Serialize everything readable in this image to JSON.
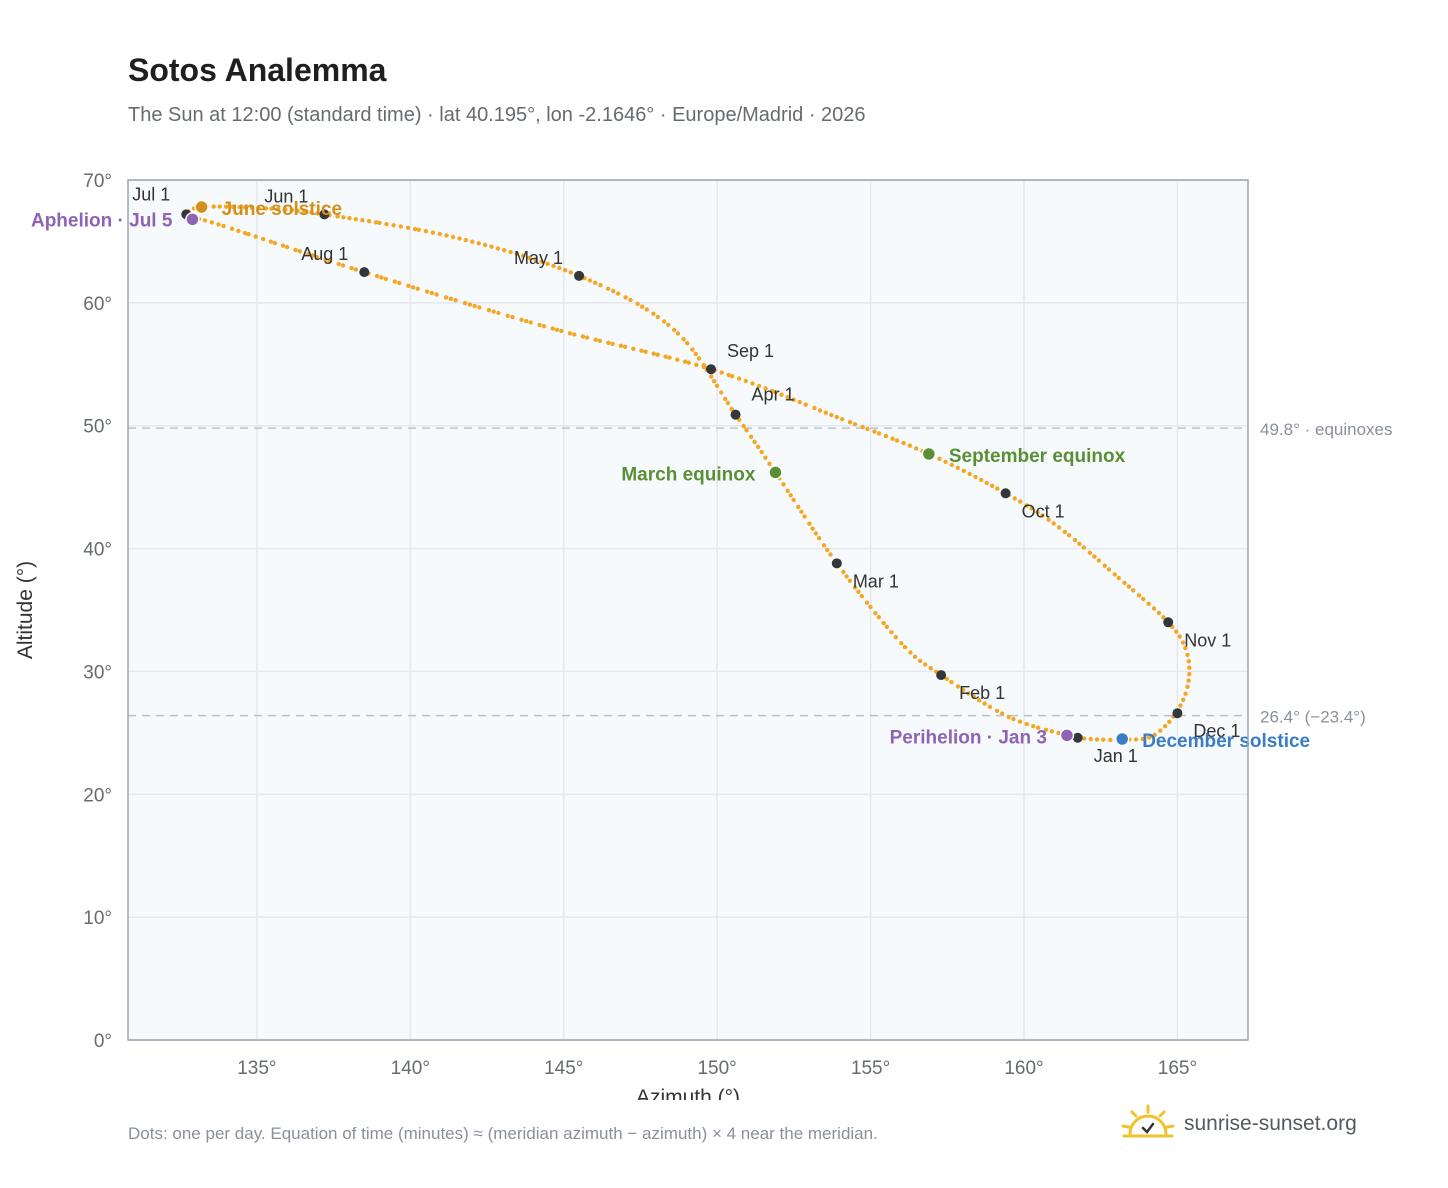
{
  "title": "Sotos Analemma",
  "subtitle": "The Sun at 12:00 (standard time) · lat 40.195°, lon -2.1646° · Europe/Madrid · 2026",
  "footnote": "Dots: one per day. Equation of time (minutes) ≈ (meridian azimuth − azimuth) × 4 near the meridian.",
  "brand": "sunrise-sunset.org",
  "colors": {
    "curve": "#f5a623",
    "month_dot": "#33363b",
    "june_solstice": "#d4901c",
    "december_solstice": "#3b7dc4",
    "equinox": "#5a8f35",
    "apsis": "#8e63b5",
    "grid": "#e4e8ee",
    "plot_bg": "#f7fafd",
    "frame": "#9aa3b2",
    "ref_line": "#b8c2cc",
    "logo": "#f2c12e"
  },
  "chart_data": {
    "type": "scatter",
    "xlabel": "Azimuth (°)",
    "ylabel": "Altitude (°)",
    "xlim": [
      130.8,
      167.3
    ],
    "ylim": [
      0,
      70
    ],
    "grid": true,
    "x_ticks": [
      {
        "value": 135,
        "label": "135°"
      },
      {
        "value": 140,
        "label": "140°"
      },
      {
        "value": 145,
        "label": "145°"
      },
      {
        "value": 150,
        "label": "150°"
      },
      {
        "value": 155,
        "label": "155°"
      },
      {
        "value": 160,
        "label": "160°"
      },
      {
        "value": 165,
        "label": "165°"
      }
    ],
    "y_ticks": [
      {
        "value": 0,
        "label": "0°"
      },
      {
        "value": 10,
        "label": "10°"
      },
      {
        "value": 20,
        "label": "20°"
      },
      {
        "value": 30,
        "label": "30°"
      },
      {
        "value": 40,
        "label": "40°"
      },
      {
        "value": 50,
        "label": "50°"
      },
      {
        "value": 60,
        "label": "60°"
      },
      {
        "value": 70,
        "label": "70°"
      }
    ],
    "reference_lines": [
      {
        "y": 49.8,
        "label": "49.8° · equinoxes"
      },
      {
        "y": 26.4,
        "label": "26.4° (−23.4°)"
      }
    ],
    "curve_points": [
      [
        161.75,
        24.6
      ],
      [
        162.5,
        24.45
      ],
      [
        163.35,
        24.45
      ],
      [
        164.2,
        24.75
      ],
      [
        164.95,
        26.6
      ],
      [
        165.35,
        29.0
      ],
      [
        165.3,
        31.6
      ],
      [
        164.7,
        34.0
      ],
      [
        163.0,
        37.8
      ],
      [
        161.1,
        41.8
      ],
      [
        159.4,
        44.5
      ],
      [
        156.9,
        47.7
      ],
      [
        153.9,
        50.7
      ],
      [
        149.8,
        54.6
      ],
      [
        144.5,
        58.0
      ],
      [
        138.5,
        62.5
      ],
      [
        133.6,
        66.5
      ],
      [
        132.9,
        66.8
      ],
      [
        132.7,
        67.2
      ],
      [
        133.2,
        67.8
      ],
      [
        135.2,
        67.7
      ],
      [
        137.2,
        67.2
      ],
      [
        141.5,
        65.3
      ],
      [
        145.5,
        62.2
      ],
      [
        148.6,
        57.8
      ],
      [
        150.6,
        50.9
      ],
      [
        151.9,
        46.2
      ],
      [
        153.9,
        38.8
      ],
      [
        156.0,
        32.3
      ],
      [
        157.3,
        29.7
      ],
      [
        159.5,
        26.3
      ],
      [
        161.4,
        24.8
      ],
      [
        161.75,
        24.6
      ]
    ],
    "month_markers": [
      {
        "label": "Jan 1",
        "az": 161.75,
        "alt": 24.6
      },
      {
        "label": "Feb 1",
        "az": 157.3,
        "alt": 29.7
      },
      {
        "label": "Mar 1",
        "az": 153.9,
        "alt": 38.8
      },
      {
        "label": "Apr 1",
        "az": 150.6,
        "alt": 50.9
      },
      {
        "label": "May 1",
        "az": 145.5,
        "alt": 62.2
      },
      {
        "label": "Jun 1",
        "az": 137.2,
        "alt": 67.2
      },
      {
        "label": "Jul 1",
        "az": 132.7,
        "alt": 67.2
      },
      {
        "label": "Aug 1",
        "az": 138.5,
        "alt": 62.5
      },
      {
        "label": "Sep 1",
        "az": 149.8,
        "alt": 54.6
      },
      {
        "label": "Oct 1",
        "az": 159.4,
        "alt": 44.5
      },
      {
        "label": "Nov 1",
        "az": 164.7,
        "alt": 34.0
      },
      {
        "label": "Dec 1",
        "az": 165.0,
        "alt": 26.6
      }
    ],
    "events": [
      {
        "label": "June solstice",
        "az": 133.2,
        "alt": 67.8,
        "kind": "june_solstice"
      },
      {
        "label": "Aphelion · Jul 5",
        "az": 132.9,
        "alt": 66.8,
        "kind": "apsis"
      },
      {
        "label": "March equinox",
        "az": 151.9,
        "alt": 46.2,
        "kind": "equinox"
      },
      {
        "label": "September equinox",
        "az": 156.9,
        "alt": 47.7,
        "kind": "equinox"
      },
      {
        "label": "Perihelion · Jan 3",
        "az": 161.4,
        "alt": 24.8,
        "kind": "apsis"
      },
      {
        "label": "December solstice",
        "az": 163.2,
        "alt": 24.5,
        "kind": "december_solstice"
      }
    ]
  }
}
